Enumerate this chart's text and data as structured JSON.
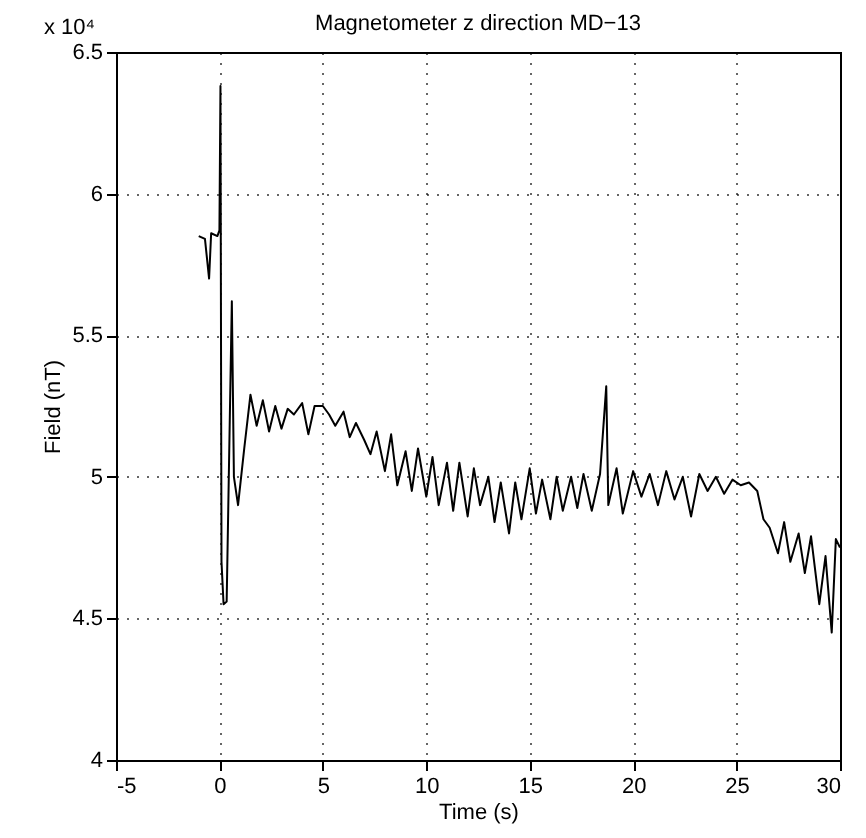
{
  "chart_data": {
    "type": "line",
    "title": "Magnetometer z direction MD−13",
    "xlabel": "Time (s)",
    "ylabel": "Field (nT)",
    "annotations": [
      "x 10⁴"
    ],
    "xlim": [
      -5,
      30
    ],
    "xticks": [
      -5,
      0,
      5,
      10,
      15,
      20,
      25,
      30
    ],
    "ylim": [
      4,
      6.5
    ],
    "yticks": [
      4,
      4.5,
      5,
      5.5,
      6,
      6.5
    ],
    "grid": true,
    "line_style": "solid",
    "series": [
      {
        "color": "#000000",
        "x": [
          -1.0,
          -0.7,
          -0.5,
          -0.4,
          -0.1,
          0.0,
          0.05,
          0.1,
          0.2,
          0.35,
          0.5,
          0.6,
          0.7,
          0.9,
          1.2,
          1.5,
          1.8,
          2.1,
          2.4,
          2.7,
          3.0,
          3.3,
          3.6,
          4.0,
          4.3,
          4.6,
          5.0,
          5.3,
          5.6,
          6.0,
          6.3,
          6.6,
          7.0,
          7.3,
          7.6,
          8.0,
          8.3,
          8.6,
          9.0,
          9.3,
          9.6,
          10.0,
          10.3,
          10.6,
          11.0,
          11.3,
          11.6,
          12.0,
          12.3,
          12.6,
          13.0,
          13.3,
          13.6,
          14.0,
          14.3,
          14.6,
          15.0,
          15.3,
          15.6,
          16.0,
          16.3,
          16.6,
          17.0,
          17.3,
          17.6,
          18.0,
          18.4,
          18.7,
          18.8,
          19.2,
          19.5,
          20.0,
          20.4,
          20.8,
          21.2,
          21.6,
          22.0,
          22.4,
          22.8,
          23.2,
          23.6,
          24.0,
          24.4,
          24.8,
          25.2,
          25.6,
          26.0,
          26.3,
          26.6,
          27.0,
          27.3,
          27.6,
          28.0,
          28.3,
          28.6,
          29.0,
          29.3,
          29.6,
          29.8,
          30.0
        ],
        "values": [
          5.85,
          5.84,
          5.7,
          5.86,
          5.85,
          5.87,
          6.38,
          4.7,
          4.55,
          4.56,
          5.2,
          5.62,
          5.0,
          4.9,
          5.1,
          5.29,
          5.18,
          5.27,
          5.16,
          5.25,
          5.17,
          5.24,
          5.22,
          5.26,
          5.15,
          5.25,
          5.25,
          5.22,
          5.18,
          5.23,
          5.14,
          5.19,
          5.13,
          5.08,
          5.16,
          5.02,
          5.15,
          4.97,
          5.09,
          4.95,
          5.1,
          4.93,
          5.07,
          4.9,
          5.05,
          4.88,
          5.05,
          4.86,
          5.03,
          4.9,
          5.0,
          4.84,
          4.98,
          4.8,
          4.98,
          4.85,
          5.03,
          4.87,
          4.99,
          4.85,
          5.0,
          4.88,
          5.0,
          4.89,
          5.01,
          4.88,
          5.01,
          5.32,
          4.9,
          5.03,
          4.87,
          5.02,
          4.93,
          5.01,
          4.9,
          5.02,
          4.92,
          5.0,
          4.86,
          5.01,
          4.95,
          5.0,
          4.94,
          4.99,
          4.97,
          4.98,
          4.95,
          4.85,
          4.82,
          4.73,
          4.84,
          4.7,
          4.8,
          4.66,
          4.79,
          4.55,
          4.72,
          4.45,
          4.78,
          4.75
        ]
      }
    ]
  }
}
